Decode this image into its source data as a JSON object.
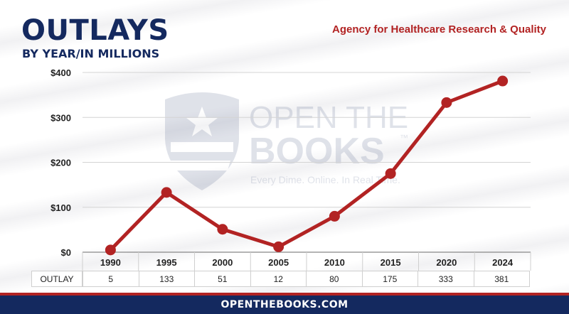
{
  "header": {
    "title": "OUTLAYS",
    "subtitle": "BY YEAR/IN MILLIONS",
    "agency": "Agency for Healthcare Research & Quality"
  },
  "watermark": {
    "line1": "OPEN THE",
    "line2": "BOOKS",
    "tagline": "Every Dime. Online. In Real Time.",
    "trademark": "™"
  },
  "table": {
    "row_label": "OUTLAY",
    "values": [
      "5",
      "133",
      "51",
      "12",
      "80",
      "175",
      "333",
      "381"
    ]
  },
  "footer": {
    "text": "OPENTHEBOOKS.COM"
  },
  "colors": {
    "line": "#b22323",
    "navy": "#14295f",
    "grid": "#d4d4d4"
  },
  "chart_data": {
    "type": "line",
    "categories": [
      "1990",
      "1995",
      "2000",
      "2005",
      "2010",
      "2015",
      "2020",
      "2024"
    ],
    "values": [
      5,
      133,
      51,
      12,
      80,
      175,
      333,
      381
    ],
    "ytick_labels": [
      "$0",
      "$100",
      "$200",
      "$300",
      "$400"
    ],
    "ylim": [
      0,
      400
    ],
    "grid": true,
    "legend": "none"
  }
}
